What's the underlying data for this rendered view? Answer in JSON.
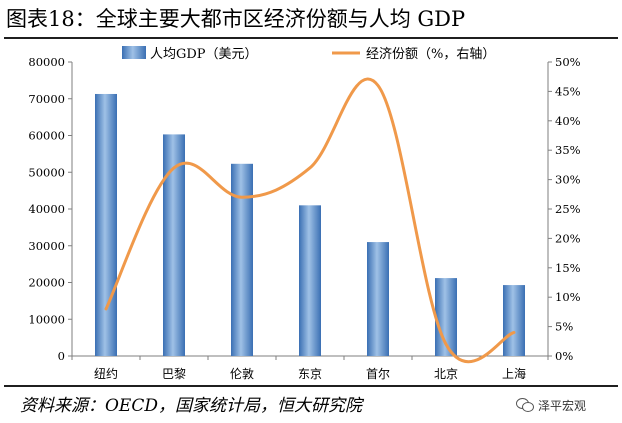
{
  "title": "图表18：全球主要大都市区经济份额与人均 GDP",
  "source": "资料来源：OECD，国家统计局，恒大研究院",
  "watermark": {
    "text": "泽平宏观",
    "icon": "wechat-icon"
  },
  "colors": {
    "bar": "#3a6fb3",
    "bar_light": "#9fc1e6",
    "line": "#f0994a",
    "axis": "#7f7f7f"
  },
  "chart_data": {
    "type": "bar",
    "categories": [
      "纽约",
      "巴黎",
      "伦敦",
      "东京",
      "首尔",
      "北京",
      "上海"
    ],
    "series": [
      {
        "name": "人均GDP（美元）",
        "type": "bar",
        "axis": "left",
        "values": [
          71300,
          60300,
          52300,
          41000,
          31000,
          21200,
          19300
        ]
      },
      {
        "name": "经济份额（%，右轴）",
        "type": "line",
        "axis": "right",
        "values": [
          8,
          32,
          27,
          32,
          46,
          2,
          4
        ]
      }
    ],
    "left_axis": {
      "min": 0,
      "max": 80000,
      "step": 10000,
      "ticks": [
        "0",
        "10000",
        "20000",
        "30000",
        "40000",
        "50000",
        "60000",
        "70000",
        "80000"
      ]
    },
    "right_axis": {
      "min": 0,
      "max": 50,
      "step": 5,
      "ticks": [
        "0%",
        "5%",
        "10%",
        "15%",
        "20%",
        "25%",
        "30%",
        "35%",
        "40%",
        "45%",
        "50%"
      ]
    },
    "legend": {
      "placement": "top",
      "items": [
        "人均GDP（美元）",
        "经济份额（%，右轴）"
      ]
    },
    "grid": false
  }
}
